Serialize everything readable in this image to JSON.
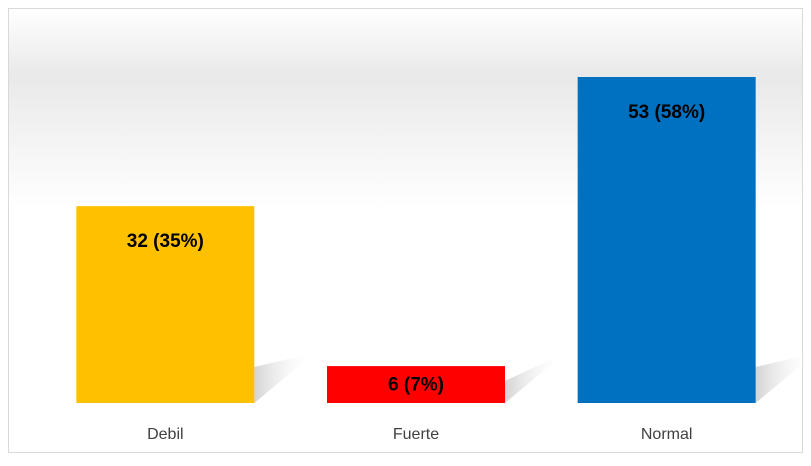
{
  "chart_data": {
    "type": "bar",
    "categories": [
      "Debil",
      "Fuerte",
      "Normal"
    ],
    "values": [
      32,
      6,
      53
    ],
    "value_labels": [
      "32 (35%)",
      "6 (7%)",
      "53 (58%)"
    ],
    "colors": [
      "#ffc000",
      "#ff0000",
      "#0070c0"
    ]
  }
}
